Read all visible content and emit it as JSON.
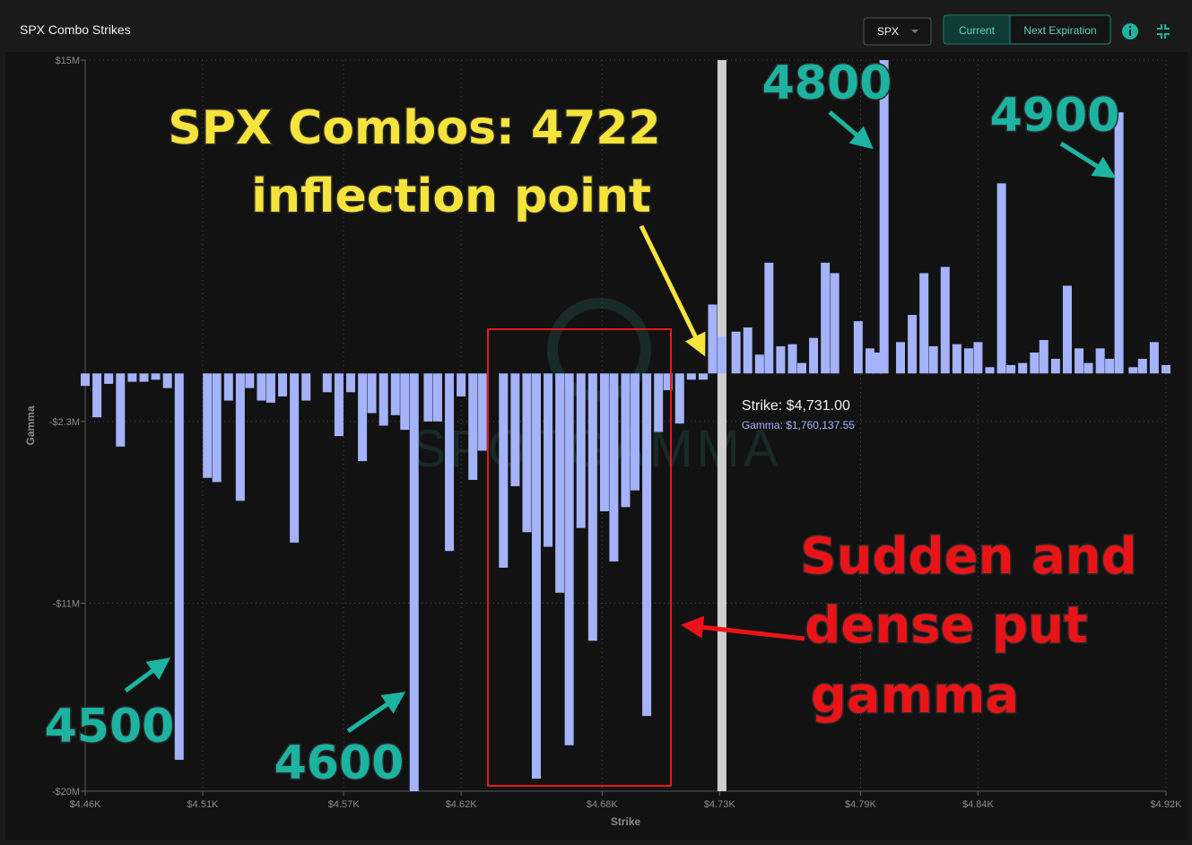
{
  "chart_data": {
    "type": "bar",
    "title": "SPX Combo Strikes",
    "toolbar": {
      "symbol": "SPX",
      "buttons": [
        "Current",
        "Next Expiration"
      ]
    },
    "x_label": "Strike",
    "y_label": "Gamma",
    "watermark": "SPOTGAMMA",
    "color": "#a4b3fa",
    "grid": true,
    "xlim": [
      4460,
      4920
    ],
    "xticks": [
      {
        "value": 4460,
        "label": "$4.46K"
      },
      {
        "value": 4510,
        "label": "$4.51K"
      },
      {
        "value": 4570,
        "label": "$4.57K"
      },
      {
        "value": 4620,
        "label": "$4.62K"
      },
      {
        "value": 4680,
        "label": "$4.68K"
      },
      {
        "value": 4730,
        "label": "$4.73K"
      },
      {
        "value": 4790,
        "label": "$4.79K"
      },
      {
        "value": 4840,
        "label": "$4.84K"
      },
      {
        "value": 4920,
        "label": "$4.92K"
      }
    ],
    "ylim": [
      -20000000,
      15000000
    ],
    "yticks": [
      {
        "value": 15000000,
        "label": "$15M"
      },
      {
        "value": -2300000,
        "label": "-$2.3M"
      },
      {
        "value": -11000000,
        "label": "-$11M"
      },
      {
        "value": -20000000,
        "label": "-$20M"
      }
    ],
    "x": [
      4460,
      4465,
      4470,
      4475,
      4480,
      4485,
      4490,
      4495,
      4500,
      4512,
      4516,
      4521,
      4526,
      4530,
      4535,
      4539,
      4544,
      4549,
      4554,
      4563,
      4568,
      4573,
      4578,
      4582,
      4587,
      4592,
      4596,
      4600,
      4606,
      4610,
      4615,
      4620,
      4625,
      4629,
      4638,
      4643,
      4648,
      4652,
      4657,
      4662,
      4666,
      4671,
      4676,
      4681,
      4685,
      4690,
      4694,
      4699,
      4704,
      4708,
      4713,
      4718,
      4723,
      4727,
      4731,
      4737,
      4742,
      4747,
      4751,
      4756,
      4761,
      4765,
      4770,
      4775,
      4779,
      4789,
      4794,
      4797,
      4800,
      4807,
      4812,
      4817,
      4821,
      4826,
      4831,
      4836,
      4840,
      4845,
      4850,
      4854,
      4859,
      4864,
      4868,
      4873,
      4878,
      4883,
      4887,
      4892,
      4896,
      4900,
      4906,
      4910,
      4915,
      4920
    ],
    "values": [
      -600000,
      -2100000,
      -500000,
      -3500000,
      -400000,
      -400000,
      -300000,
      -700000,
      -18500000,
      -5000000,
      -5200000,
      -1300000,
      -6100000,
      -700000,
      -1300000,
      -1400000,
      -1100000,
      -8100000,
      -1300000,
      -900000,
      -3000000,
      -900000,
      -4200000,
      -1900000,
      -2500000,
      -2000000,
      -2700000,
      -20000000,
      -2300000,
      -2300000,
      -8500000,
      -1100000,
      -5100000,
      -3700000,
      -9300000,
      -5400000,
      -7600000,
      -19400000,
      -8300000,
      -10500000,
      -17800000,
      -7400000,
      -12800000,
      -6600000,
      -9000000,
      -6400000,
      -5600000,
      -16400000,
      -2800000,
      -800000,
      -2400000,
      -300000,
      -300000,
      3300000,
      1760137.55,
      2000000,
      2200000,
      900000,
      5300000,
      1300000,
      1400000,
      500000,
      1700000,
      5300000,
      4800000,
      2500000,
      1200000,
      1000000,
      15000000,
      1500000,
      2800000,
      4800000,
      1300000,
      5100000,
      1400000,
      1200000,
      1500000,
      300000,
      9100000,
      400000,
      500000,
      1000000,
      1600000,
      700000,
      4200000,
      1200000,
      500000,
      1200000,
      700000,
      12500000,
      300000,
      700000,
      1500000,
      400000
    ],
    "hover": {
      "x": 4731,
      "strike_label": "Strike: $4,731.00",
      "gamma_label": "Gamma: $1,760,137.55"
    },
    "annotations": [
      {
        "text": "SPX Combos: 4722",
        "color": "#f6e33c"
      },
      {
        "text": "inflection point",
        "color": "#f6e33c"
      },
      {
        "text": "4800",
        "color": "#1cb3a0"
      },
      {
        "text": "4900",
        "color": "#1cb3a0"
      },
      {
        "text": "4500",
        "color": "#1cb3a0"
      },
      {
        "text": "4600",
        "color": "#1cb3a0"
      },
      {
        "text": "Sudden and",
        "color": "#ea1418"
      },
      {
        "text": "dense put",
        "color": "#ea1418"
      },
      {
        "text": "gamma",
        "color": "#ea1418"
      }
    ]
  }
}
